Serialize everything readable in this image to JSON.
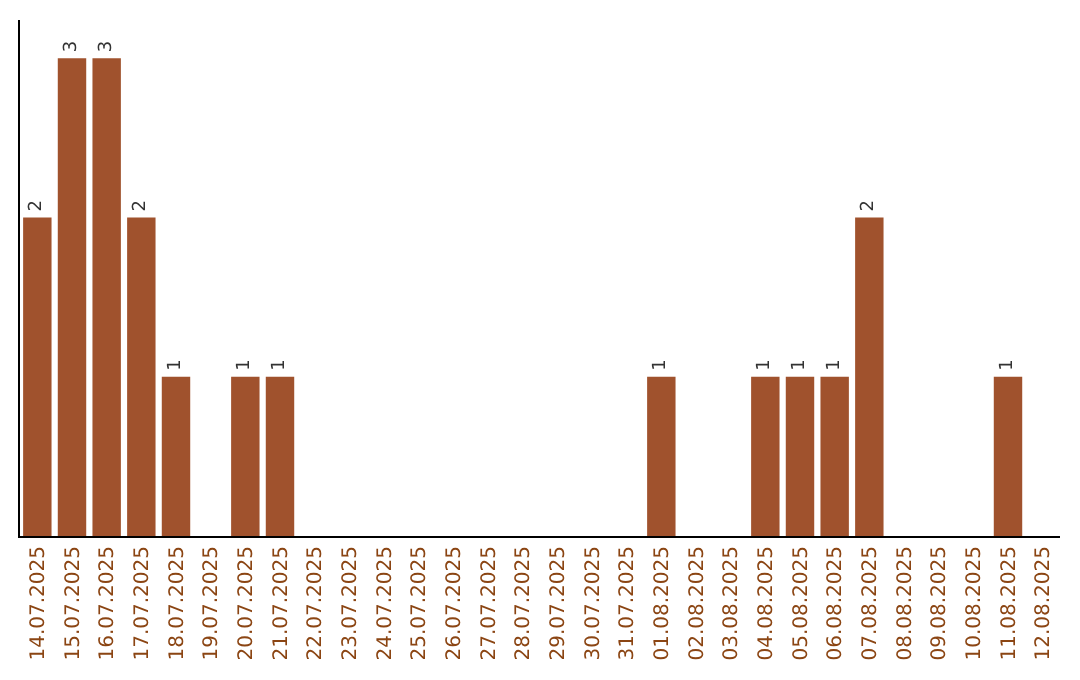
{
  "chart_data": {
    "type": "bar",
    "categories": [
      "14.07.2025",
      "15.07.2025",
      "16.07.2025",
      "17.07.2025",
      "18.07.2025",
      "19.07.2025",
      "20.07.2025",
      "21.07.2025",
      "22.07.2025",
      "23.07.2025",
      "24.07.2025",
      "25.07.2025",
      "26.07.2025",
      "27.07.2025",
      "28.07.2025",
      "29.07.2025",
      "30.07.2025",
      "31.07.2025",
      "01.08.2025",
      "02.08.2025",
      "03.08.2025",
      "04.08.2025",
      "05.08.2025",
      "06.08.2025",
      "07.08.2025",
      "08.08.2025",
      "09.08.2025",
      "10.08.2025",
      "11.08.2025",
      "12.08.2025"
    ],
    "values": [
      2,
      3,
      3,
      2,
      1,
      0,
      1,
      1,
      0,
      0,
      0,
      0,
      0,
      0,
      0,
      0,
      0,
      0,
      1,
      0,
      0,
      1,
      1,
      1,
      2,
      0,
      0,
      0,
      1,
      0
    ],
    "value_labels": [
      "2",
      "3",
      "3",
      "2",
      "1",
      null,
      "1",
      "1",
      null,
      null,
      null,
      null,
      null,
      null,
      null,
      null,
      null,
      null,
      "1",
      null,
      null,
      "1",
      "1",
      "1",
      "2",
      null,
      null,
      null,
      "1",
      null
    ],
    "color": "#a0522d"
  }
}
